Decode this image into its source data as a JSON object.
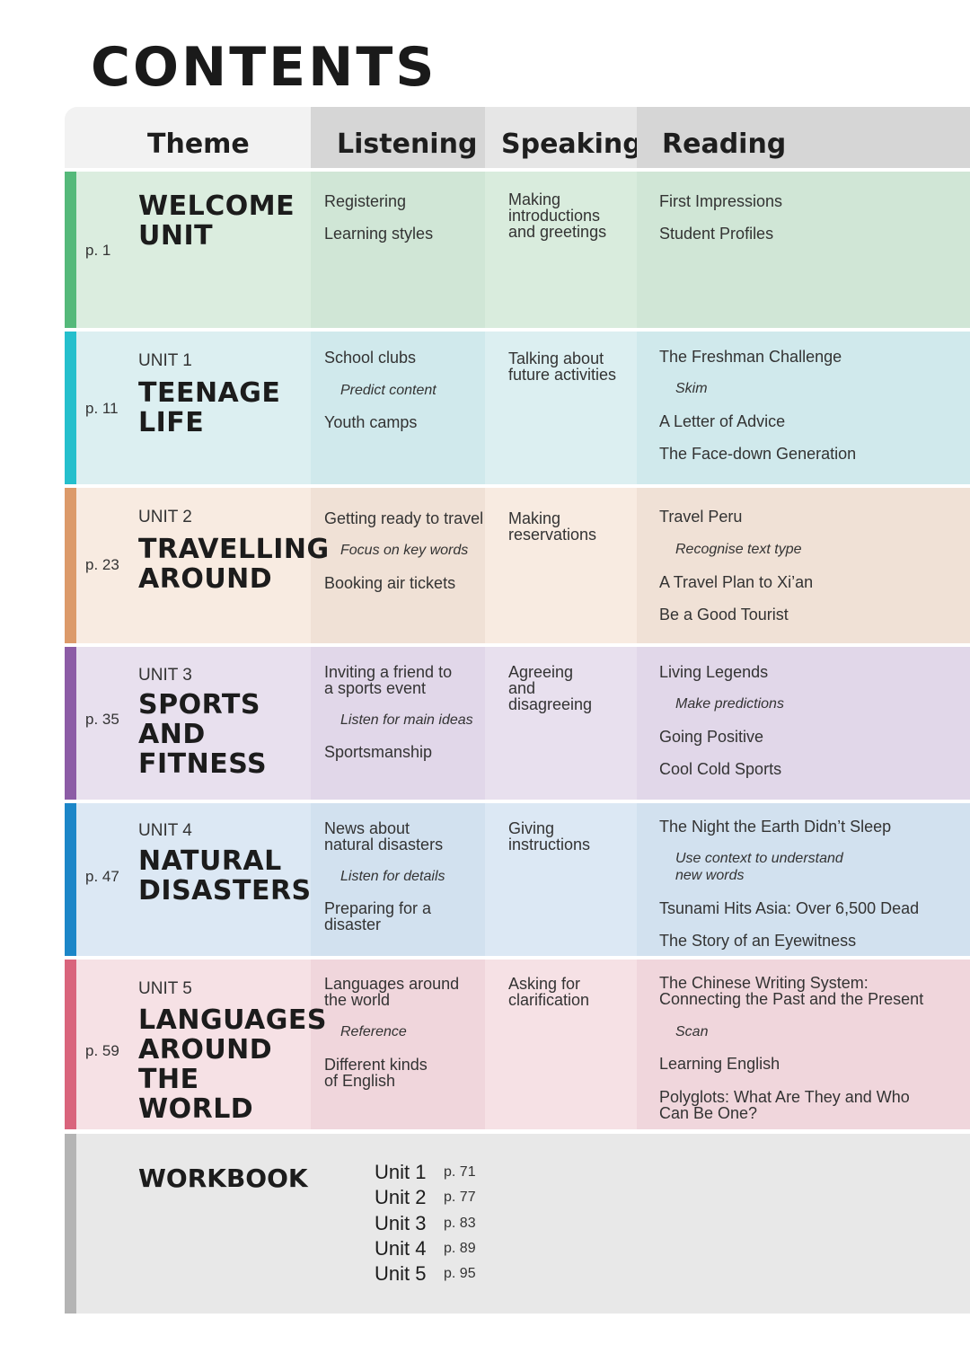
{
  "title": "CONTENTS",
  "headers": {
    "theme": "Theme",
    "listening": "Listening",
    "speaking": "Speaking",
    "reading": "Reading"
  },
  "colors": {
    "header_theme": "#f2f2f2",
    "header_col": "#d6d6d6",
    "header_speak": "#e6e6e6",
    "welcome_band": "#55b97a",
    "unit1_band": "#25bfcc",
    "unit2_band": "#dc9a6a",
    "unit3_band": "#8c5ca6",
    "unit4_band": "#1c86c8",
    "unit5_band": "#d9647c",
    "workbook_band": "#b4b4b4"
  },
  "units": [
    {
      "page": "p. 1",
      "label": "",
      "title": "WELCOME\nUNIT",
      "listening": [
        {
          "text": "Registering",
          "skill": false
        },
        {
          "text": "Learning styles",
          "skill": false
        }
      ],
      "speaking": [
        {
          "text": "Making\nintroductions\nand greetings",
          "skill": false
        }
      ],
      "reading": [
        {
          "text": "First Impressions",
          "skill": false
        },
        {
          "text": "Student Profiles",
          "skill": false
        }
      ]
    },
    {
      "page": "p. 11",
      "label": "UNIT 1",
      "title": "TEENAGE\nLIFE",
      "listening": [
        {
          "text": "School clubs",
          "skill": false
        },
        {
          "text": "Predict content",
          "skill": true
        },
        {
          "text": "Youth camps",
          "skill": false
        }
      ],
      "speaking": [
        {
          "text": "Talking about\nfuture activities",
          "skill": false
        }
      ],
      "reading": [
        {
          "text": "The Freshman Challenge",
          "skill": false
        },
        {
          "text": "Skim",
          "skill": true
        },
        {
          "text": "A Letter of Advice",
          "skill": false
        },
        {
          "text": "The Face-down Generation",
          "skill": false
        }
      ]
    },
    {
      "page": "p. 23",
      "label": "UNIT 2",
      "title": "TRAVELLING\nAROUND",
      "listening": [
        {
          "text": "Getting ready to travel",
          "skill": false
        },
        {
          "text": "Focus on key words",
          "skill": true
        },
        {
          "text": "Booking air tickets",
          "skill": false
        }
      ],
      "speaking": [
        {
          "text": "Making\nreservations",
          "skill": false
        }
      ],
      "reading": [
        {
          "text": "Travel Peru",
          "skill": false
        },
        {
          "text": "Recognise text type",
          "skill": true
        },
        {
          "text": "A Travel Plan to Xi’an",
          "skill": false
        },
        {
          "text": "Be a Good Tourist",
          "skill": false
        }
      ]
    },
    {
      "page": "p. 35",
      "label": "UNIT 3",
      "title": "SPORTS AND\nFITNESS",
      "listening": [
        {
          "text": "Inviting a friend to\na sports event",
          "skill": false
        },
        {
          "text": "Listen for main ideas",
          "skill": true
        },
        {
          "text": "Sportsmanship",
          "skill": false
        }
      ],
      "speaking": [
        {
          "text": "Agreeing\nand\ndisagreeing",
          "skill": false
        }
      ],
      "reading": [
        {
          "text": "Living Legends",
          "skill": false
        },
        {
          "text": "Make predictions",
          "skill": true
        },
        {
          "text": "Going Positive",
          "skill": false
        },
        {
          "text": "Cool Cold Sports",
          "skill": false
        }
      ]
    },
    {
      "page": "p. 47",
      "label": "UNIT 4",
      "title": "NATURAL\nDISASTERS",
      "listening": [
        {
          "text": "News about\nnatural disasters",
          "skill": false
        },
        {
          "text": "Listen for details",
          "skill": true
        },
        {
          "text": "Preparing for a\ndisaster",
          "skill": false
        }
      ],
      "speaking": [
        {
          "text": "Giving\ninstructions",
          "skill": false
        }
      ],
      "reading": [
        {
          "text": "The Night the Earth Didn’t Sleep",
          "skill": false
        },
        {
          "text": "Use context to understand\nnew words",
          "skill": true
        },
        {
          "text": "Tsunami Hits Asia: Over 6,500 Dead",
          "skill": false
        },
        {
          "text": "The Story of an Eyewitness",
          "skill": false
        }
      ]
    },
    {
      "page": "p. 59",
      "label": "UNIT 5",
      "title": "LANGUAGES\nAROUND\nTHE WORLD",
      "listening": [
        {
          "text": "Languages around\nthe world",
          "skill": false
        },
        {
          "text": "Reference",
          "skill": true
        },
        {
          "text": "Different kinds\nof English",
          "skill": false
        }
      ],
      "speaking": [
        {
          "text": "Asking for\nclarification",
          "skill": false
        }
      ],
      "reading": [
        {
          "text": "The Chinese Writing System:\nConnecting the Past and the Present",
          "skill": false
        },
        {
          "text": "Scan",
          "skill": true
        },
        {
          "text": "Learning English",
          "skill": false
        },
        {
          "text": "Polyglots: What Are They and Who\nCan Be One?",
          "skill": false
        }
      ]
    }
  ],
  "workbook": {
    "title": "WORKBOOK",
    "items": [
      {
        "unit": "Unit 1",
        "page": "p. 71"
      },
      {
        "unit": "Unit 2",
        "page": "p. 77"
      },
      {
        "unit": "Unit 3",
        "page": "p. 83"
      },
      {
        "unit": "Unit 4",
        "page": "p. 89"
      },
      {
        "unit": "Unit 5",
        "page": "p. 95"
      }
    ]
  }
}
